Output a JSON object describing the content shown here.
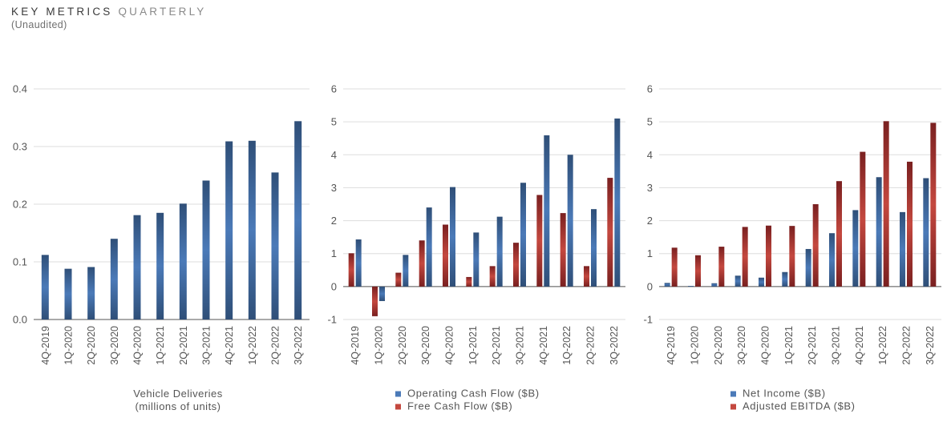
{
  "header": {
    "title_main": "KEY METRICS",
    "title_sub": "QUARTERLY",
    "subtitle": "(Unaudited)"
  },
  "colors": {
    "blue_dark": "#2f4f78",
    "blue_light": "#4b7ab8",
    "red_dark": "#7a2020",
    "red_light": "#c4483f",
    "grid": "#dddddd",
    "axis": "#555555"
  },
  "chart_data": [
    {
      "type": "bar",
      "categories": [
        "4Q-2019",
        "1Q-2020",
        "2Q-2020",
        "3Q-2020",
        "4Q-2020",
        "1Q-2021",
        "2Q-2021",
        "3Q-2021",
        "4Q-2021",
        "1Q-2022",
        "2Q-2022",
        "3Q-2022"
      ],
      "series": [
        {
          "values": [
            0.112,
            0.088,
            0.091,
            0.14,
            0.181,
            0.185,
            0.201,
            0.241,
            0.309,
            0.31,
            0.255,
            0.344
          ]
        }
      ],
      "yticks": [
        "0.0",
        "0.1",
        "0.2",
        "0.3",
        "0.4"
      ],
      "ylim": [
        0,
        0.4
      ],
      "xlabel": [
        "Vehicle Deliveries",
        "(millions of units)"
      ],
      "grid": true
    },
    {
      "type": "bar",
      "categories": [
        "4Q-2019",
        "1Q-2020",
        "2Q-2020",
        "3Q-2020",
        "4Q-2020",
        "1Q-2021",
        "2Q-2021",
        "3Q-2021",
        "4Q-2021",
        "1Q-2022",
        "2Q-2022",
        "3Q-2022"
      ],
      "series": [
        {
          "name": "Free Cash Flow ($B)",
          "color": "red",
          "values": [
            1.01,
            -0.9,
            0.42,
            1.4,
            1.88,
            0.29,
            0.62,
            1.33,
            2.78,
            2.23,
            0.62,
            3.3
          ]
        },
        {
          "name": "Operating Cash Flow ($B)",
          "color": "blue",
          "values": [
            1.43,
            -0.44,
            0.96,
            2.4,
            3.02,
            1.64,
            2.12,
            3.15,
            4.59,
            4.0,
            2.35,
            5.1
          ]
        }
      ],
      "legend_order": [
        1,
        0
      ],
      "yticks": [
        "-1",
        "0",
        "1",
        "2",
        "3",
        "4",
        "5",
        "6"
      ],
      "ylim": [
        -1,
        6
      ],
      "grid": true
    },
    {
      "type": "bar",
      "categories": [
        "4Q-2019",
        "1Q-2020",
        "2Q-2020",
        "3Q-2020",
        "4Q-2020",
        "1Q-2021",
        "2Q-2021",
        "3Q-2021",
        "4Q-2021",
        "1Q-2022",
        "2Q-2022",
        "3Q-2022"
      ],
      "series": [
        {
          "name": "Net Income ($B)",
          "color": "blue",
          "values": [
            0.11,
            0.02,
            0.1,
            0.33,
            0.27,
            0.44,
            1.14,
            1.62,
            2.32,
            3.32,
            2.26,
            3.29
          ]
        },
        {
          "name": "Adjusted EBITDA ($B)",
          "color": "red",
          "values": [
            1.18,
            0.95,
            1.21,
            1.81,
            1.85,
            1.84,
            2.5,
            3.2,
            4.09,
            5.02,
            3.79,
            4.97
          ]
        }
      ],
      "legend_order": [
        0,
        1
      ],
      "yticks": [
        "-1",
        "0",
        "1",
        "2",
        "3",
        "4",
        "5",
        "6"
      ],
      "ylim": [
        -1,
        6
      ],
      "grid": true
    }
  ]
}
